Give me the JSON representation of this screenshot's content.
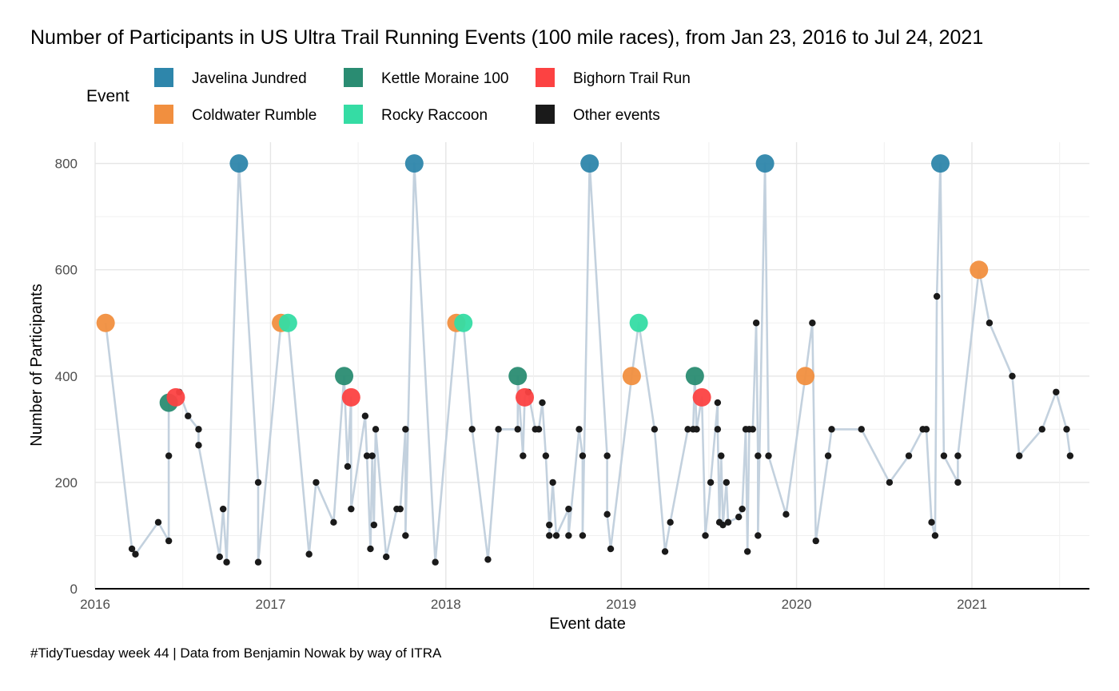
{
  "chart_data": {
    "type": "scatter",
    "title": "Number of Participants in US Ultra Trail Running Events (100 mile races), from Jan 23, 2016 to Jul 24, 2021",
    "xlabel": "Event date",
    "ylabel": "Number of Participants",
    "caption": "#TidyTuesday week 44 | Data from Benjamin Nowak by way of ITRA",
    "xlim": [
      2016.0,
      2021.67
    ],
    "ylim": [
      0,
      840
    ],
    "x_ticks": [
      2016,
      2017,
      2018,
      2019,
      2020,
      2021
    ],
    "y_ticks": [
      0,
      200,
      400,
      600,
      800
    ],
    "legend": {
      "title": "Event",
      "placement": "top",
      "entries": [
        {
          "key": "javelina",
          "label": "Javelina Jundred",
          "color": "#2e86ab"
        },
        {
          "key": "coldwater",
          "label": "Coldwater Rumble",
          "color": "#f18f3f"
        },
        {
          "key": "kettle",
          "label": "Kettle Moraine 100",
          "color": "#2a8c72"
        },
        {
          "key": "rocky",
          "label": "Rocky Raccoon",
          "color": "#35dca4"
        },
        {
          "key": "bighorn",
          "label": "Bighorn Trail Run",
          "color": "#fc4242"
        },
        {
          "key": "other",
          "label": "Other events",
          "color": "#1a1a1a"
        }
      ]
    },
    "line_color": "#c3d1de",
    "points": [
      {
        "x": 2016.06,
        "y": 500,
        "event": "coldwater"
      },
      {
        "x": 2016.21,
        "y": 75,
        "event": "other"
      },
      {
        "x": 2016.23,
        "y": 65,
        "event": "other"
      },
      {
        "x": 2016.36,
        "y": 125,
        "event": "other"
      },
      {
        "x": 2016.42,
        "y": 90,
        "event": "other"
      },
      {
        "x": 2016.42,
        "y": 250,
        "event": "other"
      },
      {
        "x": 2016.42,
        "y": 350,
        "event": "kettle"
      },
      {
        "x": 2016.46,
        "y": 360,
        "event": "bighorn"
      },
      {
        "x": 2016.48,
        "y": 370,
        "event": "other"
      },
      {
        "x": 2016.53,
        "y": 325,
        "event": "other"
      },
      {
        "x": 2016.59,
        "y": 300,
        "event": "other"
      },
      {
        "x": 2016.59,
        "y": 270,
        "event": "other"
      },
      {
        "x": 2016.71,
        "y": 60,
        "event": "other"
      },
      {
        "x": 2016.73,
        "y": 150,
        "event": "other"
      },
      {
        "x": 2016.75,
        "y": 50,
        "event": "other"
      },
      {
        "x": 2016.82,
        "y": 800,
        "event": "javelina"
      },
      {
        "x": 2016.93,
        "y": 200,
        "event": "other"
      },
      {
        "x": 2016.93,
        "y": 50,
        "event": "other"
      },
      {
        "x": 2017.06,
        "y": 500,
        "event": "coldwater"
      },
      {
        "x": 2017.1,
        "y": 500,
        "event": "rocky"
      },
      {
        "x": 2017.22,
        "y": 65,
        "event": "other"
      },
      {
        "x": 2017.26,
        "y": 200,
        "event": "other"
      },
      {
        "x": 2017.36,
        "y": 125,
        "event": "other"
      },
      {
        "x": 2017.42,
        "y": 400,
        "event": "kettle"
      },
      {
        "x": 2017.44,
        "y": 230,
        "event": "other"
      },
      {
        "x": 2017.46,
        "y": 360,
        "event": "bighorn"
      },
      {
        "x": 2017.46,
        "y": 150,
        "event": "other"
      },
      {
        "x": 2017.54,
        "y": 325,
        "event": "other"
      },
      {
        "x": 2017.55,
        "y": 250,
        "event": "other"
      },
      {
        "x": 2017.57,
        "y": 75,
        "event": "other"
      },
      {
        "x": 2017.58,
        "y": 250,
        "event": "other"
      },
      {
        "x": 2017.59,
        "y": 120,
        "event": "other"
      },
      {
        "x": 2017.6,
        "y": 300,
        "event": "other"
      },
      {
        "x": 2017.66,
        "y": 60,
        "event": "other"
      },
      {
        "x": 2017.72,
        "y": 150,
        "event": "other"
      },
      {
        "x": 2017.74,
        "y": 150,
        "event": "other"
      },
      {
        "x": 2017.77,
        "y": 300,
        "event": "other"
      },
      {
        "x": 2017.77,
        "y": 100,
        "event": "other"
      },
      {
        "x": 2017.82,
        "y": 800,
        "event": "javelina"
      },
      {
        "x": 2017.94,
        "y": 50,
        "event": "other"
      },
      {
        "x": 2018.06,
        "y": 500,
        "event": "coldwater"
      },
      {
        "x": 2018.1,
        "y": 500,
        "event": "rocky"
      },
      {
        "x": 2018.15,
        "y": 300,
        "event": "other"
      },
      {
        "x": 2018.24,
        "y": 55,
        "event": "other"
      },
      {
        "x": 2018.3,
        "y": 300,
        "event": "other"
      },
      {
        "x": 2018.41,
        "y": 300,
        "event": "other"
      },
      {
        "x": 2018.41,
        "y": 400,
        "event": "kettle"
      },
      {
        "x": 2018.44,
        "y": 250,
        "event": "other"
      },
      {
        "x": 2018.45,
        "y": 360,
        "event": "bighorn"
      },
      {
        "x": 2018.47,
        "y": 370,
        "event": "other"
      },
      {
        "x": 2018.51,
        "y": 300,
        "event": "other"
      },
      {
        "x": 2018.53,
        "y": 300,
        "event": "other"
      },
      {
        "x": 2018.55,
        "y": 350,
        "event": "other"
      },
      {
        "x": 2018.57,
        "y": 250,
        "event": "other"
      },
      {
        "x": 2018.59,
        "y": 120,
        "event": "other"
      },
      {
        "x": 2018.59,
        "y": 100,
        "event": "other"
      },
      {
        "x": 2018.61,
        "y": 200,
        "event": "other"
      },
      {
        "x": 2018.63,
        "y": 100,
        "event": "other"
      },
      {
        "x": 2018.7,
        "y": 150,
        "event": "other"
      },
      {
        "x": 2018.7,
        "y": 100,
        "event": "other"
      },
      {
        "x": 2018.76,
        "y": 300,
        "event": "other"
      },
      {
        "x": 2018.78,
        "y": 250,
        "event": "other"
      },
      {
        "x": 2018.78,
        "y": 100,
        "event": "other"
      },
      {
        "x": 2018.82,
        "y": 800,
        "event": "javelina"
      },
      {
        "x": 2018.92,
        "y": 250,
        "event": "other"
      },
      {
        "x": 2018.92,
        "y": 140,
        "event": "other"
      },
      {
        "x": 2018.94,
        "y": 75,
        "event": "other"
      },
      {
        "x": 2019.06,
        "y": 400,
        "event": "coldwater"
      },
      {
        "x": 2019.1,
        "y": 500,
        "event": "rocky"
      },
      {
        "x": 2019.19,
        "y": 300,
        "event": "other"
      },
      {
        "x": 2019.25,
        "y": 70,
        "event": "other"
      },
      {
        "x": 2019.28,
        "y": 125,
        "event": "other"
      },
      {
        "x": 2019.38,
        "y": 300,
        "event": "other"
      },
      {
        "x": 2019.41,
        "y": 300,
        "event": "other"
      },
      {
        "x": 2019.42,
        "y": 400,
        "event": "kettle"
      },
      {
        "x": 2019.43,
        "y": 300,
        "event": "other"
      },
      {
        "x": 2019.46,
        "y": 360,
        "event": "bighorn"
      },
      {
        "x": 2019.48,
        "y": 100,
        "event": "other"
      },
      {
        "x": 2019.51,
        "y": 200,
        "event": "other"
      },
      {
        "x": 2019.55,
        "y": 350,
        "event": "other"
      },
      {
        "x": 2019.55,
        "y": 300,
        "event": "other"
      },
      {
        "x": 2019.56,
        "y": 125,
        "event": "other"
      },
      {
        "x": 2019.57,
        "y": 250,
        "event": "other"
      },
      {
        "x": 2019.58,
        "y": 120,
        "event": "other"
      },
      {
        "x": 2019.6,
        "y": 200,
        "event": "other"
      },
      {
        "x": 2019.61,
        "y": 125,
        "event": "other"
      },
      {
        "x": 2019.67,
        "y": 135,
        "event": "other"
      },
      {
        "x": 2019.69,
        "y": 150,
        "event": "other"
      },
      {
        "x": 2019.71,
        "y": 300,
        "event": "other"
      },
      {
        "x": 2019.72,
        "y": 70,
        "event": "other"
      },
      {
        "x": 2019.73,
        "y": 300,
        "event": "other"
      },
      {
        "x": 2019.75,
        "y": 300,
        "event": "other"
      },
      {
        "x": 2019.77,
        "y": 500,
        "event": "other"
      },
      {
        "x": 2019.78,
        "y": 250,
        "event": "other"
      },
      {
        "x": 2019.78,
        "y": 100,
        "event": "other"
      },
      {
        "x": 2019.82,
        "y": 800,
        "event": "javelina"
      },
      {
        "x": 2019.84,
        "y": 250,
        "event": "other"
      },
      {
        "x": 2019.94,
        "y": 140,
        "event": "other"
      },
      {
        "x": 2020.05,
        "y": 400,
        "event": "coldwater"
      },
      {
        "x": 2020.09,
        "y": 500,
        "event": "other"
      },
      {
        "x": 2020.11,
        "y": 90,
        "event": "other"
      },
      {
        "x": 2020.18,
        "y": 250,
        "event": "other"
      },
      {
        "x": 2020.2,
        "y": 300,
        "event": "other"
      },
      {
        "x": 2020.37,
        "y": 300,
        "event": "other"
      },
      {
        "x": 2020.53,
        "y": 200,
        "event": "other"
      },
      {
        "x": 2020.64,
        "y": 250,
        "event": "other"
      },
      {
        "x": 2020.72,
        "y": 300,
        "event": "other"
      },
      {
        "x": 2020.74,
        "y": 300,
        "event": "other"
      },
      {
        "x": 2020.77,
        "y": 125,
        "event": "other"
      },
      {
        "x": 2020.79,
        "y": 100,
        "event": "other"
      },
      {
        "x": 2020.8,
        "y": 550,
        "event": "other"
      },
      {
        "x": 2020.82,
        "y": 800,
        "event": "javelina"
      },
      {
        "x": 2020.84,
        "y": 250,
        "event": "other"
      },
      {
        "x": 2020.92,
        "y": 200,
        "event": "other"
      },
      {
        "x": 2020.92,
        "y": 250,
        "event": "other"
      },
      {
        "x": 2021.04,
        "y": 600,
        "event": "coldwater"
      },
      {
        "x": 2021.1,
        "y": 500,
        "event": "other"
      },
      {
        "x": 2021.23,
        "y": 400,
        "event": "other"
      },
      {
        "x": 2021.27,
        "y": 250,
        "event": "other"
      },
      {
        "x": 2021.4,
        "y": 300,
        "event": "other"
      },
      {
        "x": 2021.48,
        "y": 370,
        "event": "other"
      },
      {
        "x": 2021.54,
        "y": 300,
        "event": "other"
      },
      {
        "x": 2021.56,
        "y": 250,
        "event": "other"
      }
    ]
  }
}
